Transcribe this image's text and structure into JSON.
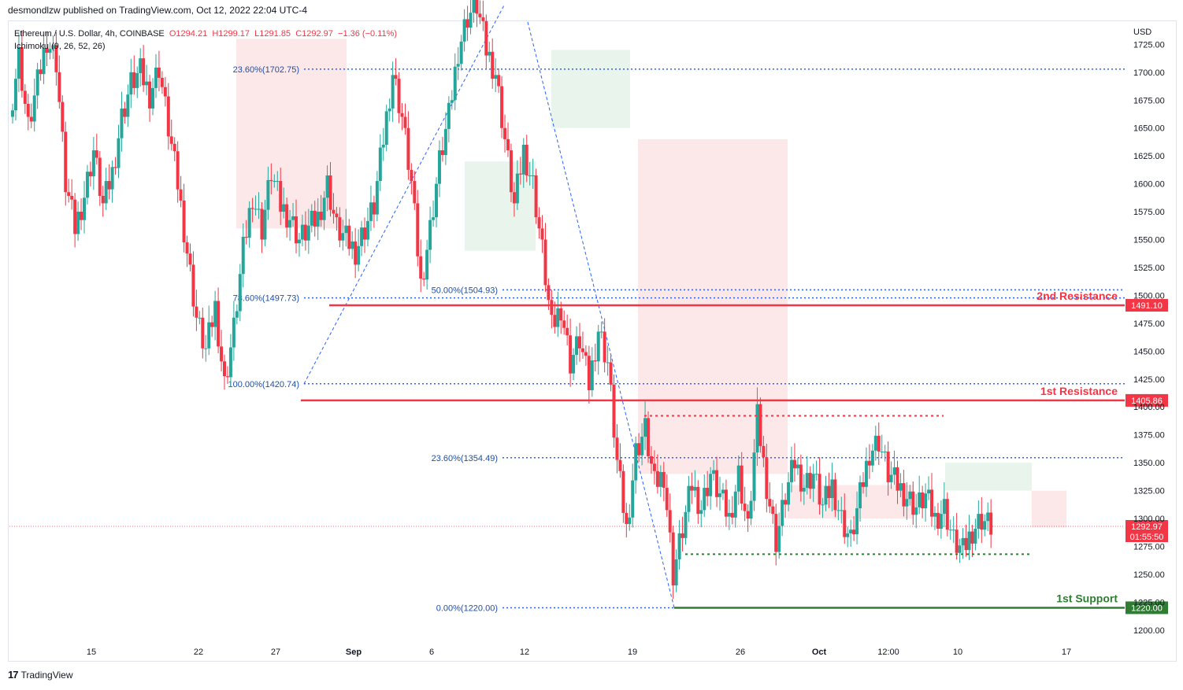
{
  "header": {
    "published": "desmondlzw published on TradingView.com, Oct 12, 2022 22:04 UTC-4"
  },
  "legend": {
    "symbol": "Ethereum / U.S. Dollar, 4h, COINBASE",
    "o": "O1294.21",
    "h": "H1299.17",
    "l": "L1291.85",
    "c": "C1292.97",
    "chg": "−1.36 (−0.11%)",
    "indicator": "Ichimoku (9, 26, 52, 26)"
  },
  "footer": {
    "brand": "TradingView"
  },
  "colors": {
    "up": "#26a69a",
    "down": "#f23645",
    "fib": "#2962ff",
    "resistance": "#f23645",
    "support": "#2e7d32",
    "cloud_bull": "#e5f3ea",
    "cloud_bear": "#fde5e7"
  },
  "chart_data": {
    "type": "candlestick",
    "currency": "USD",
    "y_ticks": [
      1200,
      1225,
      1250,
      1275,
      1300,
      1325,
      1350,
      1375,
      1400,
      1425,
      1450,
      1475,
      1500,
      1525,
      1550,
      1575,
      1600,
      1625,
      1650,
      1675,
      1700,
      1725
    ],
    "ylim": [
      1190,
      1745
    ],
    "x_ticks": [
      "15",
      "22",
      "27",
      "Sep",
      "6",
      "12",
      "19",
      "26",
      "Oct",
      "12:00",
      "10",
      "17"
    ],
    "fib_levels": [
      {
        "label": "23.60%(1702.75)",
        "value": 1702.75
      },
      {
        "label": "78.60%(1497.73)",
        "value": 1497.73
      },
      {
        "label": "100.00%(1420.74)",
        "value": 1420.74
      },
      {
        "label": "50.00%(1504.93)",
        "value": 1504.93
      },
      {
        "label": "23.60%(1354.49)",
        "value": 1354.49
      },
      {
        "label": "0.00%(1220.00)",
        "value": 1220.0
      }
    ],
    "levels": [
      {
        "name": "2nd Resistance",
        "value": 1491.1,
        "tag": "1491.10",
        "kind": "resistance"
      },
      {
        "name": "1st Resistance",
        "value": 1405.86,
        "tag": "1405.86",
        "kind": "resistance"
      },
      {
        "name": "1st Support",
        "value": 1220.0,
        "tag": "1220.00",
        "kind": "support"
      }
    ],
    "range_top": 1392,
    "range_bottom": 1268,
    "last_price": {
      "value": 1292.97,
      "tag": "1292.97",
      "timer": "01:55:50"
    },
    "close_path": [
      1660,
      1715,
      1650,
      1690,
      1730,
      1710,
      1600,
      1560,
      1590,
      1630,
      1580,
      1610,
      1660,
      1690,
      1700,
      1680,
      1705,
      1650,
      1600,
      1540,
      1480,
      1450,
      1490,
      1420,
      1470,
      1540,
      1590,
      1560,
      1610,
      1580,
      1570,
      1550,
      1560,
      1570,
      1600,
      1560,
      1550,
      1540,
      1560,
      1580,
      1640,
      1700,
      1660,
      1600,
      1510,
      1560,
      1620,
      1660,
      1720,
      1750,
      1760,
      1720,
      1700,
      1640,
      1580,
      1630,
      1600,
      1540,
      1470,
      1490,
      1440,
      1460,
      1420,
      1470,
      1440,
      1350,
      1290,
      1360,
      1380,
      1330,
      1340,
      1250,
      1290,
      1330,
      1310,
      1340,
      1320,
      1300,
      1340,
      1290,
      1390,
      1330,
      1280,
      1320,
      1350,
      1330,
      1340,
      1310,
      1330,
      1300,
      1280,
      1320,
      1360,
      1370,
      1340,
      1330,
      1320,
      1310,
      1320,
      1300,
      1310,
      1280,
      1270,
      1290,
      1300,
      1293
    ]
  }
}
